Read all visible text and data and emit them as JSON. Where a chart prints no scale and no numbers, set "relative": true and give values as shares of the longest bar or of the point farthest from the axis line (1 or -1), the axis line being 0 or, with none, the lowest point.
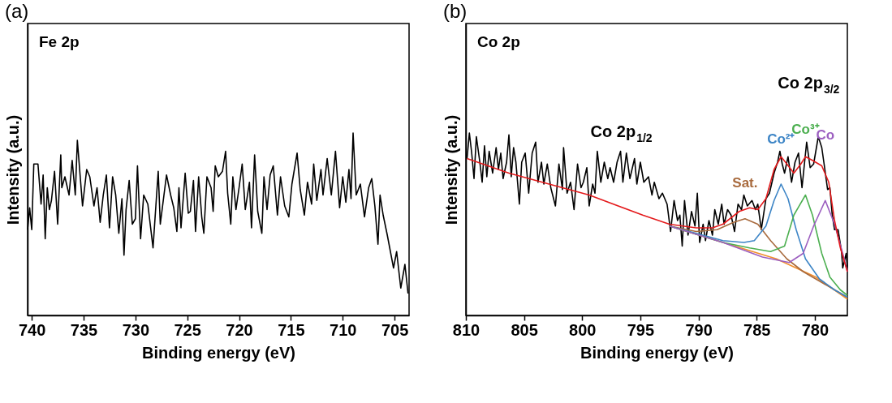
{
  "chart_data": [
    {
      "type": "line",
      "title": "(a)",
      "xlabel": "Binding energy (eV)",
      "ylabel": "Intensity (a.u.)",
      "relative": true,
      "tick_labels": "x",
      "xlim": [
        740.4,
        703.6
      ],
      "xticks": [
        740,
        735,
        730,
        725,
        720,
        715,
        710,
        705
      ],
      "annotations": [
        "Fe 2p"
      ],
      "series": [
        {
          "color": "#000000",
          "x": [
            740.4,
            740.2,
            740.0,
            739.8,
            739.4,
            739.1,
            738.9,
            738.7,
            738.5,
            738.3,
            738.1,
            737.8,
            737.5,
            737.2,
            737.1,
            736.8,
            736.4,
            736.1,
            735.8,
            735.6,
            735.1,
            734.7,
            734.4,
            734.0,
            733.7,
            733.4,
            733.1,
            732.8,
            732.5,
            732.2,
            731.9,
            731.6,
            731.3,
            731.1,
            730.9,
            730.6,
            730.3,
            730.0,
            729.8,
            729.5,
            729.2,
            728.8,
            728.3,
            727.8,
            727.6,
            727.0,
            726.6,
            726.3,
            726.0,
            725.8,
            725.6,
            725.2,
            724.9,
            724.7,
            724.4,
            724.2,
            723.9,
            723.6,
            723.4,
            723.1,
            722.7,
            722.5,
            722.3,
            722.0,
            721.6,
            721.3,
            721.1,
            720.8,
            720.6,
            720.3,
            720.0,
            719.7,
            719.4,
            719.0,
            718.8,
            718.5,
            718.2,
            717.8,
            717.6,
            717.3,
            717.0,
            716.7,
            716.3,
            716.0,
            715.6,
            715.2,
            714.9,
            714.4,
            714.1,
            713.7,
            713.4,
            713.0,
            712.8,
            712.5,
            712.1,
            711.9,
            711.5,
            711.1,
            710.7,
            710.3,
            710.0,
            709.7,
            709.4,
            709.2,
            709.0,
            708.7,
            708.3,
            707.9,
            707.5,
            707.2,
            706.9,
            706.6,
            706.4,
            706.1,
            705.7,
            705.1,
            704.8,
            704.4,
            704.0,
            703.7
          ],
          "values": [
            0.47,
            0.59,
            0.47,
            0.83,
            0.83,
            0.61,
            0.77,
            0.42,
            0.7,
            0.58,
            0.63,
            0.79,
            0.5,
            0.88,
            0.7,
            0.76,
            0.66,
            0.85,
            0.66,
            0.96,
            0.6,
            0.8,
            0.76,
            0.6,
            0.7,
            0.51,
            0.66,
            0.77,
            0.48,
            0.76,
            0.66,
            0.45,
            0.64,
            0.33,
            0.58,
            0.74,
            0.5,
            0.53,
            0.82,
            0.42,
            0.66,
            0.61,
            0.37,
            0.79,
            0.5,
            0.77,
            0.66,
            0.59,
            0.46,
            0.7,
            0.48,
            0.78,
            0.56,
            0.57,
            0.74,
            0.46,
            0.76,
            0.54,
            0.45,
            0.76,
            0.7,
            0.57,
            0.82,
            0.76,
            0.79,
            0.9,
            0.67,
            0.5,
            0.76,
            0.58,
            0.7,
            0.83,
            0.58,
            0.73,
            0.48,
            0.88,
            0.57,
            0.45,
            0.76,
            0.58,
            0.77,
            0.82,
            0.55,
            0.76,
            0.6,
            0.54,
            0.72,
            0.89,
            0.69,
            0.55,
            0.73,
            0.61,
            0.83,
            0.63,
            0.8,
            0.66,
            0.86,
            0.66,
            0.9,
            0.59,
            0.76,
            0.62,
            0.8,
            0.64,
            1.0,
            0.66,
            0.72,
            0.54,
            0.7,
            0.75,
            0.6,
            0.39,
            0.66,
            0.55,
            0.44,
            0.26,
            0.35,
            0.15,
            0.28,
            0.12
          ]
        }
      ]
    },
    {
      "type": "line",
      "title": "(b)",
      "xlabel": "Binding energy (eV)",
      "ylabel": "Intensity (a.u.)",
      "relative": true,
      "tick_labels": "x",
      "xlim": [
        810,
        777.2
      ],
      "xticks": [
        810,
        805,
        800,
        795,
        790,
        785,
        780
      ],
      "annotations": [
        "Co 2p",
        "Co 2p$_{1/2}$",
        "Co 2p$_{3/2}$"
      ],
      "series": [
        {
          "color": "#000000",
          "x": [
            809.9,
            809.7,
            809.5,
            809.3,
            809.1,
            808.8,
            808.6,
            808.4,
            808.2,
            808.0,
            807.7,
            807.4,
            807.2,
            807.0,
            806.8,
            806.5,
            806.3,
            806.1,
            805.9,
            805.7,
            805.4,
            805.2,
            804.9,
            804.6,
            804.3,
            804.0,
            803.8,
            803.5,
            803.3,
            803.0,
            802.7,
            802.3,
            802.0,
            801.7,
            801.6,
            801.3,
            801.0,
            800.7,
            800.4,
            800.1,
            799.9,
            799.6,
            799.4,
            799.1,
            798.9,
            798.7,
            798.4,
            798.1,
            797.8,
            797.6,
            797.3,
            797.0,
            796.7,
            796.5,
            796.2,
            795.9,
            795.5,
            795.3,
            795.0,
            794.7,
            794.3,
            794.0,
            793.8,
            793.4,
            793.1,
            792.7,
            792.4,
            792.1,
            791.8,
            791.6,
            791.4,
            791.2,
            790.9,
            790.6,
            790.3,
            790.1,
            789.9,
            789.6,
            789.4,
            789.1,
            788.8,
            788.6,
            788.3,
            788.0,
            787.8,
            787.5,
            787.2,
            786.9,
            786.6,
            786.3,
            786.1,
            785.8,
            785.4,
            785.1,
            784.9,
            784.6,
            784.2,
            783.9,
            783.5,
            783.2,
            783.0,
            782.8,
            782.6,
            782.3,
            782.0,
            781.7,
            781.4,
            781.1,
            780.7,
            780.4,
            780.1,
            779.7,
            779.4,
            779.2,
            778.9,
            778.7,
            778.5,
            778.3,
            778.0,
            777.7,
            777.6,
            777.3,
            777.2
          ],
          "values": [
            0.86,
            1.0,
            0.89,
            0.75,
            0.98,
            0.84,
            0.73,
            0.93,
            0.76,
            0.9,
            0.78,
            0.92,
            0.8,
            0.89,
            0.75,
            0.84,
            0.99,
            0.76,
            0.92,
            0.84,
            0.61,
            0.84,
            0.89,
            0.67,
            0.89,
            0.95,
            0.73,
            0.84,
            0.72,
            0.83,
            0.7,
            0.6,
            0.83,
            0.69,
            0.92,
            0.67,
            0.73,
            0.58,
            0.83,
            0.7,
            0.73,
            0.81,
            0.6,
            0.72,
            0.67,
            0.9,
            0.73,
            0.84,
            0.75,
            0.81,
            0.73,
            0.84,
            0.9,
            0.73,
            0.89,
            0.75,
            0.86,
            0.72,
            0.84,
            0.73,
            0.76,
            0.66,
            0.73,
            0.64,
            0.67,
            0.61,
            0.46,
            0.63,
            0.52,
            0.55,
            0.38,
            0.63,
            0.44,
            0.57,
            0.49,
            0.67,
            0.4,
            0.5,
            0.41,
            0.52,
            0.44,
            0.58,
            0.5,
            0.61,
            0.5,
            0.58,
            0.55,
            0.46,
            0.61,
            0.58,
            0.66,
            0.6,
            0.63,
            0.58,
            0.61,
            0.47,
            0.64,
            0.67,
            0.78,
            0.84,
            0.9,
            0.83,
            0.78,
            0.87,
            0.73,
            0.84,
            0.89,
            0.7,
            0.95,
            0.81,
            0.83,
            0.98,
            0.92,
            0.83,
            0.69,
            0.7,
            0.55,
            0.47,
            0.47,
            0.35,
            0.26,
            0.34,
            0.26
          ]
        },
        {
          "color": "#f28e2b",
          "x": [
            792.5,
            783.3,
            779.9,
            777.2
          ],
          "values": [
            0.49,
            0.31,
            0.21,
            0.09
          ]
        },
        {
          "name": "Sat.",
          "color": "#a86a3d",
          "x": [
            792.5,
            790.2,
            788.4,
            787.0,
            786.0,
            784.9,
            783.8,
            782.4,
            781.0,
            777.2
          ],
          "values": [
            0.49,
            0.46,
            0.47,
            0.51,
            0.53,
            0.5,
            0.41,
            0.31,
            0.24,
            0.1
          ]
        },
        {
          "name": "Co²⁺",
          "color": "#3d85c6",
          "x": [
            792.5,
            787.9,
            786.1,
            785.2,
            784.2,
            783.5,
            782.9,
            782.3,
            781.6,
            780.8,
            779.6,
            778.3,
            777.2
          ],
          "values": [
            0.49,
            0.41,
            0.4,
            0.41,
            0.49,
            0.63,
            0.72,
            0.64,
            0.47,
            0.31,
            0.2,
            0.14,
            0.1
          ]
        },
        {
          "name": "Co³⁺",
          "color": "#4caf50",
          "x": [
            792.5,
            787.9,
            785.6,
            783.8,
            782.6,
            781.8,
            780.8,
            780.2,
            779.4,
            778.7,
            777.8,
            777.2
          ],
          "values": [
            0.49,
            0.4,
            0.37,
            0.35,
            0.38,
            0.55,
            0.66,
            0.55,
            0.34,
            0.21,
            0.14,
            0.11
          ]
        },
        {
          "name": "Co",
          "color": "#9c5fc0",
          "x": [
            792.5,
            787.9,
            784.5,
            782.2,
            781.0,
            780.1,
            779.1,
            778.3,
            777.6,
            777.2
          ],
          "values": [
            0.49,
            0.4,
            0.32,
            0.29,
            0.34,
            0.49,
            0.63,
            0.5,
            0.34,
            0.24
          ]
        },
        {
          "color": "#e41a1c",
          "x": [
            809.9,
            806.3,
            799.4,
            794.8,
            792.5,
            790.2,
            788.8,
            787.9,
            786.5,
            785.6,
            784.9,
            784.2,
            783.5,
            782.9,
            782.4,
            781.8,
            781.2,
            780.8,
            780.2,
            779.4,
            778.8,
            778.3,
            777.8,
            777.2
          ],
          "values": [
            0.86,
            0.78,
            0.66,
            0.55,
            0.5,
            0.48,
            0.48,
            0.5,
            0.57,
            0.59,
            0.58,
            0.64,
            0.8,
            0.87,
            0.83,
            0.78,
            0.83,
            0.87,
            0.85,
            0.82,
            0.73,
            0.52,
            0.37,
            0.24
          ]
        }
      ]
    }
  ]
}
